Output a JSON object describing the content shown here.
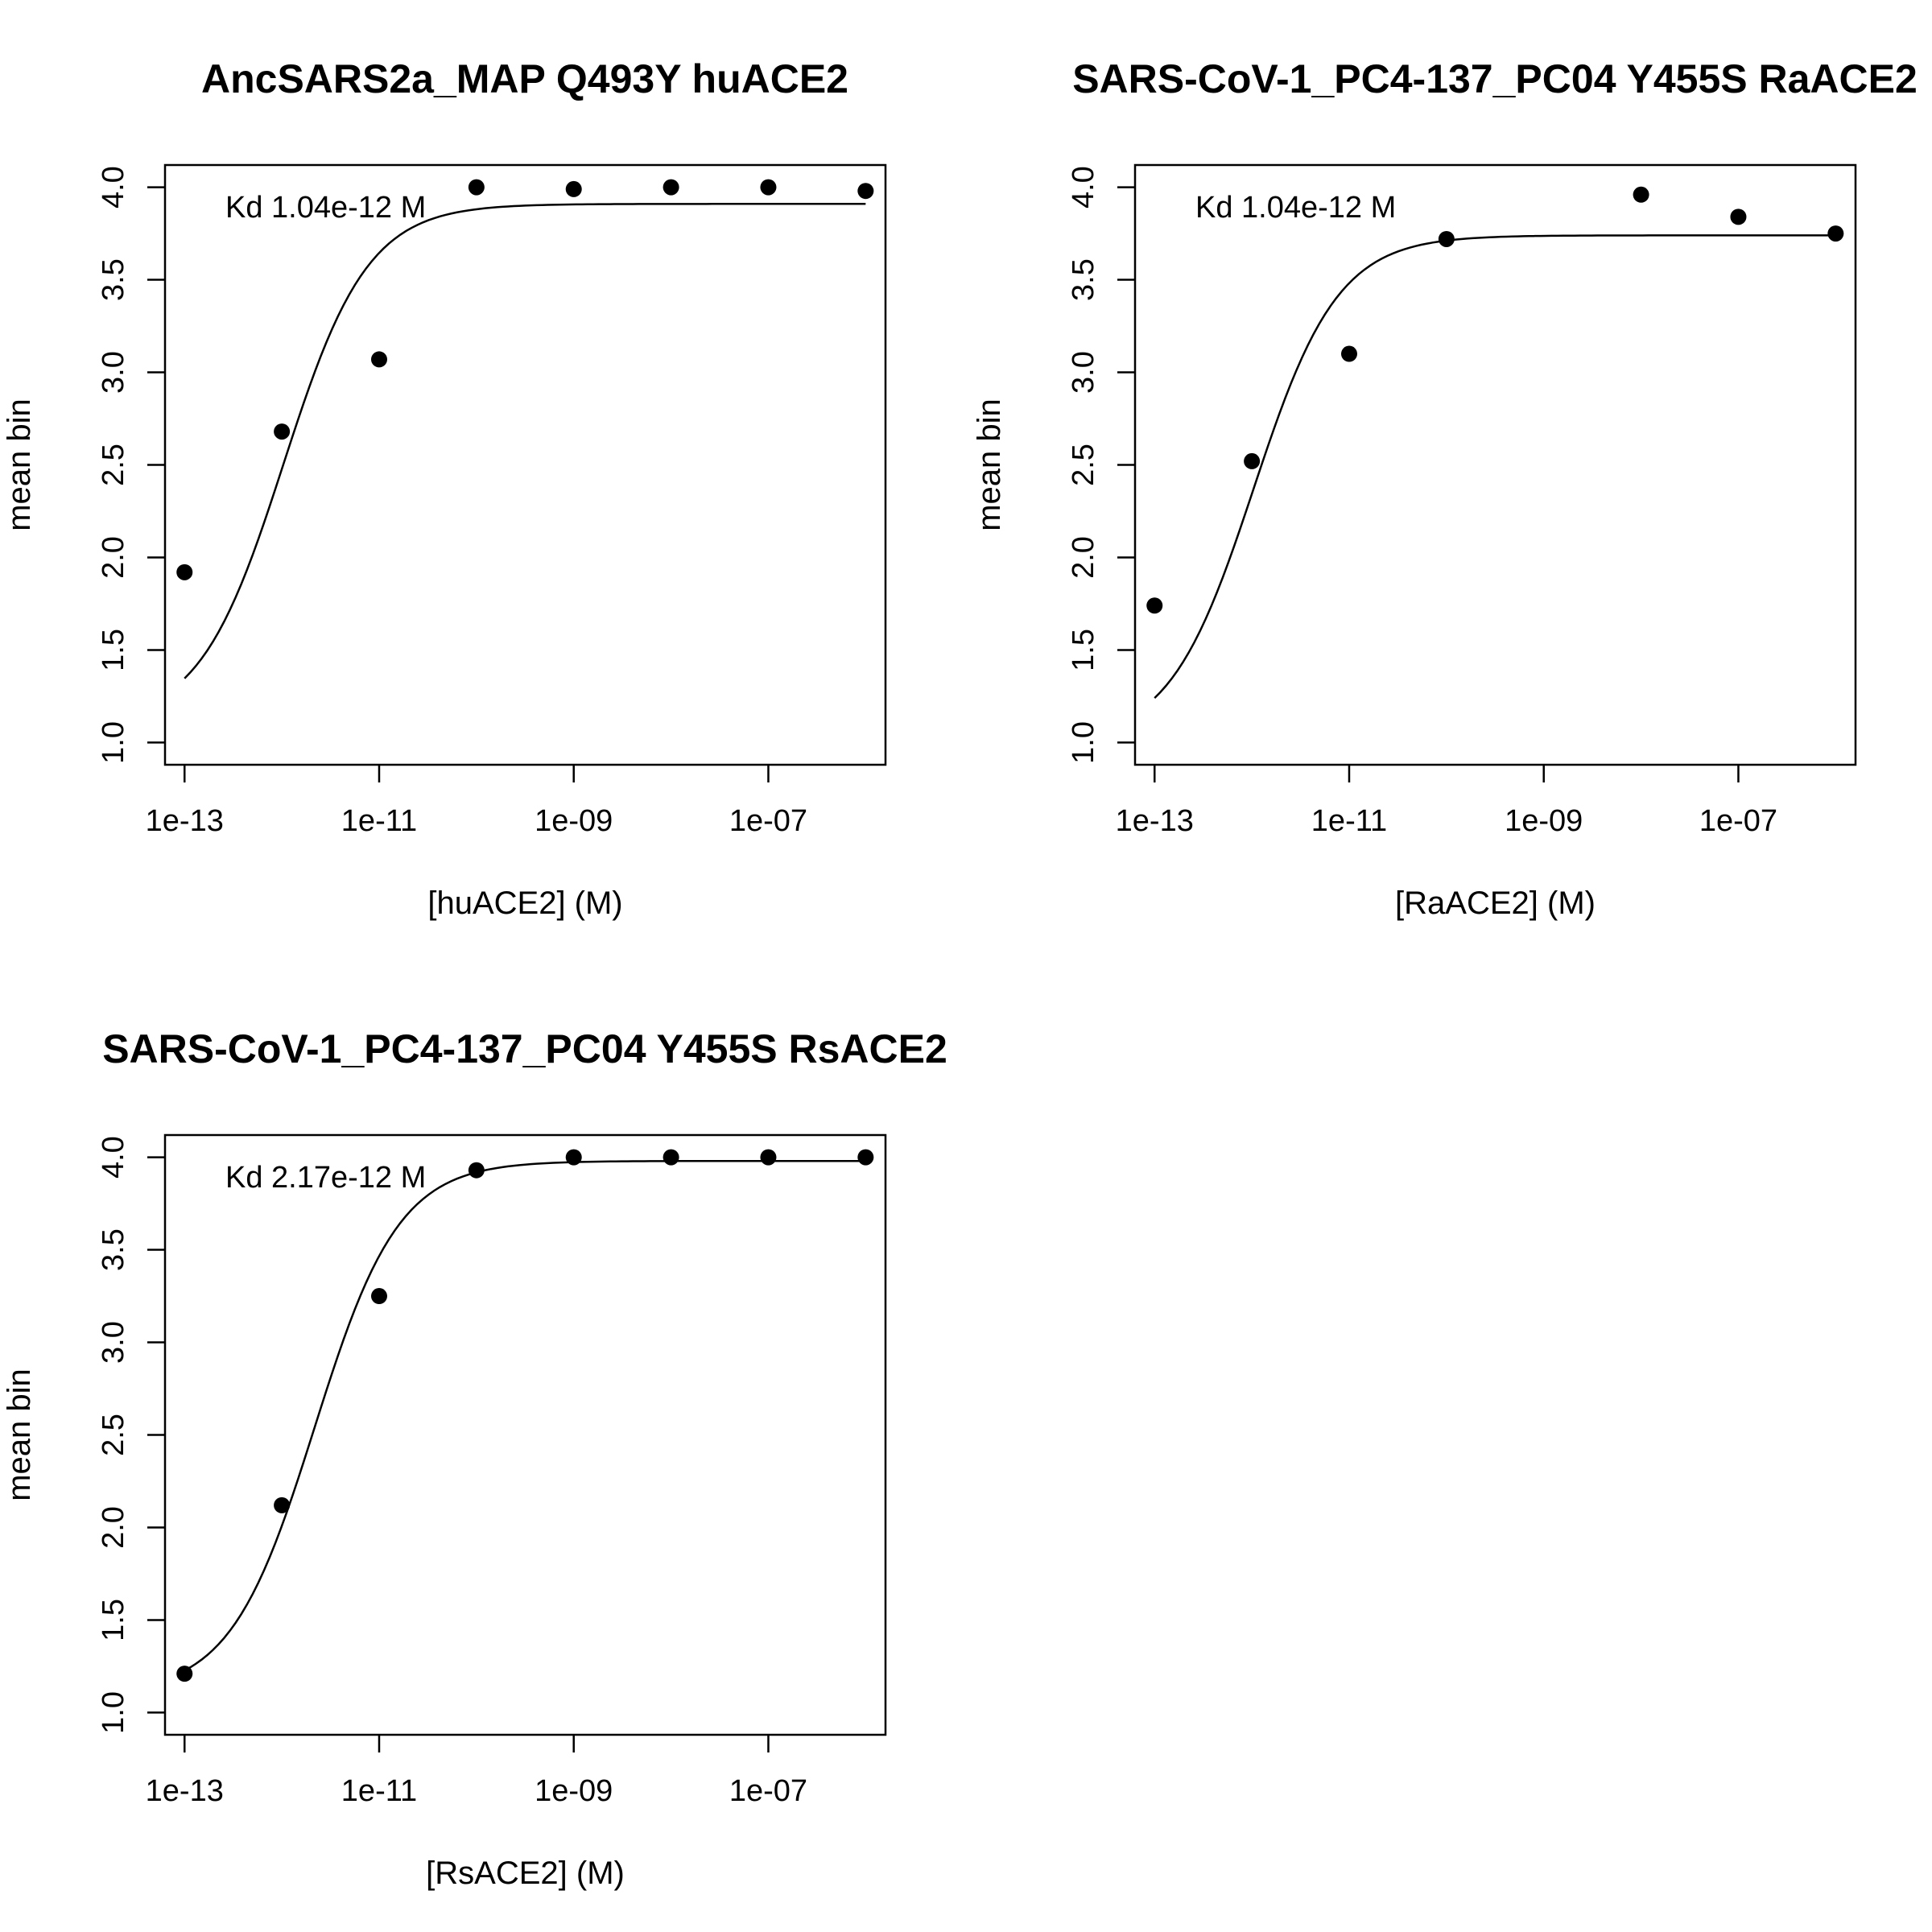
{
  "chart_data": [
    {
      "type": "scatter",
      "title": "AncSARS2a_MAP Q493Y huACE2",
      "xlabel": "[huACE2] (M)",
      "ylabel": "mean bin",
      "x_scale": "log10",
      "xlim": [
        6.3e-14,
        1.6e-06
      ],
      "ylim": [
        0.88,
        4.12
      ],
      "x_ticks": [
        1e-13,
        1e-11,
        1e-09,
        1e-07
      ],
      "x_tick_labels": [
        "1e-13",
        "1e-11",
        "1e-09",
        "1e-07"
      ],
      "y_ticks": [
        1.0,
        1.5,
        2.0,
        2.5,
        3.0,
        3.5,
        4.0
      ],
      "y_tick_labels": [
        "1.0",
        "1.5",
        "2.0",
        "2.5",
        "3.0",
        "3.5",
        "4.0"
      ],
      "annotation": "Kd 1.04e-12 M",
      "points": [
        {
          "x": 1e-13,
          "y": 1.92
        },
        {
          "x": 1e-12,
          "y": 2.68
        },
        {
          "x": 1e-11,
          "y": 3.07
        },
        {
          "x": 1e-10,
          "y": 4.0
        },
        {
          "x": 1e-09,
          "y": 3.99
        },
        {
          "x": 1e-08,
          "y": 4.0
        },
        {
          "x": 1e-07,
          "y": 4.0
        },
        {
          "x": 1e-06,
          "y": 3.98
        }
      ],
      "fit": {
        "kd": 1.04e-12,
        "bottom": 1.1,
        "top": 3.91
      }
    },
    {
      "type": "scatter",
      "title": "SARS-CoV-1_PC4-137_PC04 Y455S RaACE2",
      "xlabel": "[RaACE2] (M)",
      "ylabel": "mean bin",
      "x_scale": "log10",
      "xlim": [
        6.3e-14,
        1.6e-06
      ],
      "ylim": [
        0.88,
        4.12
      ],
      "x_ticks": [
        1e-13,
        1e-11,
        1e-09,
        1e-07
      ],
      "x_tick_labels": [
        "1e-13",
        "1e-11",
        "1e-09",
        "1e-07"
      ],
      "y_ticks": [
        1.0,
        1.5,
        2.0,
        2.5,
        3.0,
        3.5,
        4.0
      ],
      "y_tick_labels": [
        "1.0",
        "1.5",
        "2.0",
        "2.5",
        "3.0",
        "3.5",
        "4.0"
      ],
      "annotation": "Kd 1.04e-12 M",
      "points": [
        {
          "x": 1e-13,
          "y": 1.74
        },
        {
          "x": 1e-12,
          "y": 2.52
        },
        {
          "x": 1e-11,
          "y": 3.1
        },
        {
          "x": 1e-10,
          "y": 3.72
        },
        {
          "x": 1e-08,
          "y": 3.96
        },
        {
          "x": 1e-07,
          "y": 3.84
        },
        {
          "x": 1e-06,
          "y": 3.75
        }
      ],
      "fit": {
        "kd": 1.04e-12,
        "bottom": 1.0,
        "top": 3.74
      }
    },
    {
      "type": "scatter",
      "title": "SARS-CoV-1_PC4-137_PC04 Y455S RsACE2",
      "xlabel": "[RsACE2] (M)",
      "ylabel": "mean bin",
      "x_scale": "log10",
      "xlim": [
        6.3e-14,
        1.6e-06
      ],
      "ylim": [
        0.88,
        4.12
      ],
      "x_ticks": [
        1e-13,
        1e-11,
        1e-09,
        1e-07
      ],
      "x_tick_labels": [
        "1e-13",
        "1e-11",
        "1e-09",
        "1e-07"
      ],
      "y_ticks": [
        1.0,
        1.5,
        2.0,
        2.5,
        3.0,
        3.5,
        4.0
      ],
      "y_tick_labels": [
        "1.0",
        "1.5",
        "2.0",
        "2.5",
        "3.0",
        "3.5",
        "4.0"
      ],
      "annotation": "Kd 2.17e-12 M",
      "points": [
        {
          "x": 1e-13,
          "y": 1.21
        },
        {
          "x": 1e-12,
          "y": 2.12
        },
        {
          "x": 1e-11,
          "y": 3.25
        },
        {
          "x": 1e-10,
          "y": 3.93
        },
        {
          "x": 1e-09,
          "y": 4.0
        },
        {
          "x": 1e-08,
          "y": 4.0
        },
        {
          "x": 1e-07,
          "y": 4.0
        },
        {
          "x": 1e-06,
          "y": 4.0
        }
      ],
      "fit": {
        "kd": 2.17e-12,
        "bottom": 1.1,
        "top": 3.98
      }
    }
  ]
}
